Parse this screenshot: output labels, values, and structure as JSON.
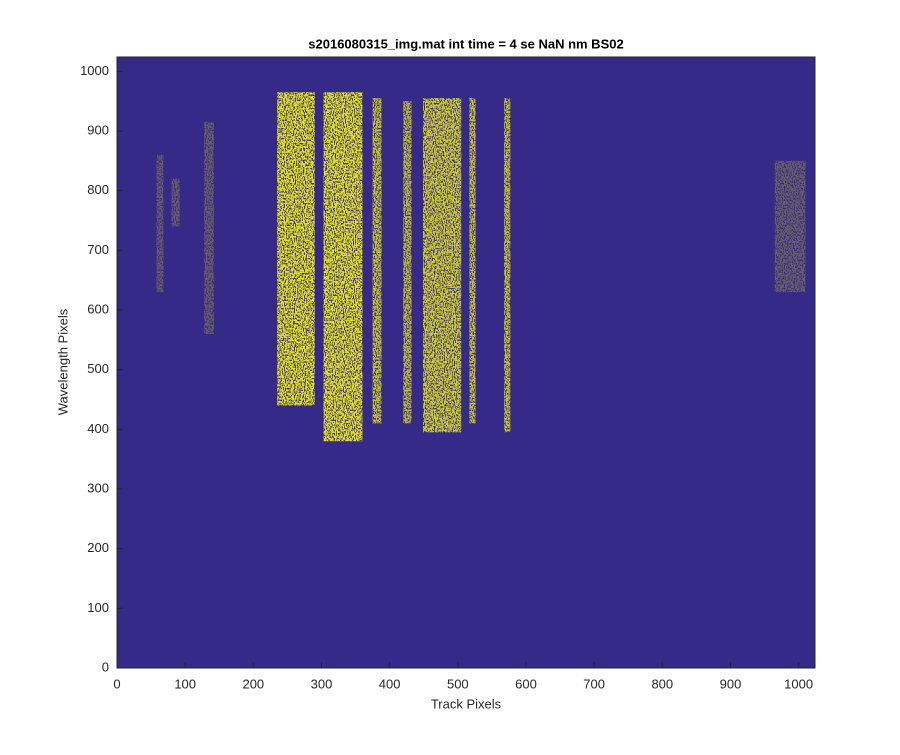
{
  "chart_data": {
    "type": "image",
    "title": "s2016080315_img.mat int time = 4 se  NaN nm BS02",
    "x_label": "Track Pixels",
    "y_label": "Wavelength Pixels",
    "xlim": [
      0,
      1024
    ],
    "ylim": [
      0,
      1024
    ],
    "xticks": [
      0,
      100,
      200,
      300,
      400,
      500,
      600,
      700,
      800,
      900,
      1000
    ],
    "yticks": [
      0,
      100,
      200,
      300,
      400,
      500,
      600,
      700,
      800,
      900,
      1000
    ],
    "background_color": "#352a87",
    "color": "#f9fb0e",
    "regions": [
      {
        "x": [
          235,
          290
        ],
        "y": [
          440,
          965
        ],
        "density": 0.9
      },
      {
        "x": [
          303,
          360
        ],
        "y": [
          380,
          965
        ],
        "density": 0.9
      },
      {
        "x": [
          375,
          388
        ],
        "y": [
          410,
          955
        ],
        "density": 0.75
      },
      {
        "x": [
          420,
          432
        ],
        "y": [
          410,
          950
        ],
        "density": 0.7
      },
      {
        "x": [
          449,
          505
        ],
        "y": [
          395,
          955
        ],
        "density": 0.8
      },
      {
        "x": [
          517,
          526
        ],
        "y": [
          410,
          955
        ],
        "density": 0.75
      },
      {
        "x": [
          568,
          577
        ],
        "y": [
          395,
          955
        ],
        "density": 0.75
      },
      {
        "x": [
          58,
          68
        ],
        "y": [
          630,
          860
        ],
        "density": 0.25
      },
      {
        "x": [
          80,
          92
        ],
        "y": [
          740,
          820
        ],
        "density": 0.25
      },
      {
        "x": [
          128,
          142
        ],
        "y": [
          560,
          915
        ],
        "density": 0.25
      },
      {
        "x": [
          965,
          1010
        ],
        "y": [
          630,
          850
        ],
        "density": 0.25
      }
    ]
  }
}
